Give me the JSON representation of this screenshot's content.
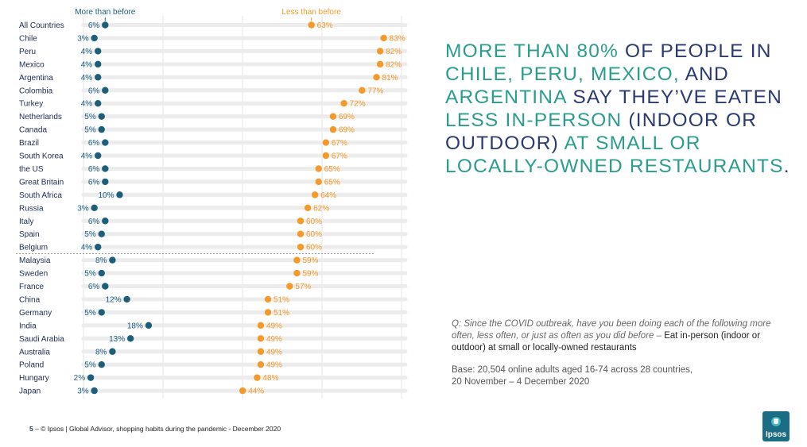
{
  "chart_data": {
    "type": "dumbbell",
    "legend": {
      "more": "More than before",
      "less": "Less than before"
    },
    "series_colors": {
      "more": "#1d5e7a",
      "less": "#f39a2a"
    },
    "categories": [
      "All Countries",
      "Chile",
      "Peru",
      "Mexico",
      "Argentina",
      "Colombia",
      "Turkey",
      "Netherlands",
      "Canada",
      "Brazil",
      "South Korea",
      "the US",
      "Great Britain",
      "South Africa",
      "Russia",
      "Italy",
      "Spain",
      "Belgium",
      "Malaysia",
      "Sweden",
      "France",
      "China",
      "Germany",
      "India",
      "Saudi Arabia",
      "Australia",
      "Poland",
      "Hungary",
      "Japan"
    ],
    "series": [
      {
        "name": "More than before",
        "values": [
          6,
          3,
          4,
          4,
          4,
          6,
          4,
          5,
          5,
          6,
          4,
          6,
          6,
          10,
          3,
          6,
          5,
          4,
          8,
          5,
          6,
          12,
          5,
          18,
          13,
          8,
          5,
          2,
          3
        ]
      },
      {
        "name": "Less than before",
        "values": [
          63,
          83,
          82,
          82,
          81,
          77,
          72,
          69,
          69,
          67,
          67,
          65,
          65,
          64,
          62,
          60,
          60,
          60,
          59,
          59,
          57,
          51,
          51,
          49,
          49,
          49,
          49,
          48,
          44
        ]
      }
    ],
    "value_suffix": "%",
    "xlim": [
      0,
      90
    ],
    "grid": true
  },
  "headline": [
    {
      "text": "MORE THAN 80% ",
      "tone": "teal"
    },
    {
      "text": "OF PEOPLE IN ",
      "tone": "navy"
    },
    {
      "text": "CHILE, PERU, MEXICO, ",
      "tone": "teal"
    },
    {
      "text": "AND ",
      "tone": "navy"
    },
    {
      "text": "ARGENTINA ",
      "tone": "teal"
    },
    {
      "text": "SAY THEY’VE EATEN ",
      "tone": "navy"
    },
    {
      "text": "LESS IN-PERSON ",
      "tone": "teal"
    },
    {
      "text": "(INDOOR OR OUTDOOR) ",
      "tone": "navy"
    },
    {
      "text": "AT SMALL OR LOCALLY-OWNED RESTAURANTS",
      "tone": "teal"
    },
    {
      "text": ".",
      "tone": "navy"
    }
  ],
  "question": {
    "prefix": "Q: Since the COVID outbreak, have you been doing each of the following more often, less often, or just as often as you did before – ",
    "subject": "Eat in-person (indoor or outdoor) at small or locally-owned restaurants"
  },
  "base": {
    "line1": "Base: 20,504 online adults aged 16-74 across 28 countries,",
    "line2": "20 November – 4 December 2020"
  },
  "footer": {
    "page": "5",
    "text": " –  © Ipsos |  Global Advisor, shopping habits during the pandemic - December 2020"
  },
  "logo": {
    "text": "Ipsos"
  }
}
